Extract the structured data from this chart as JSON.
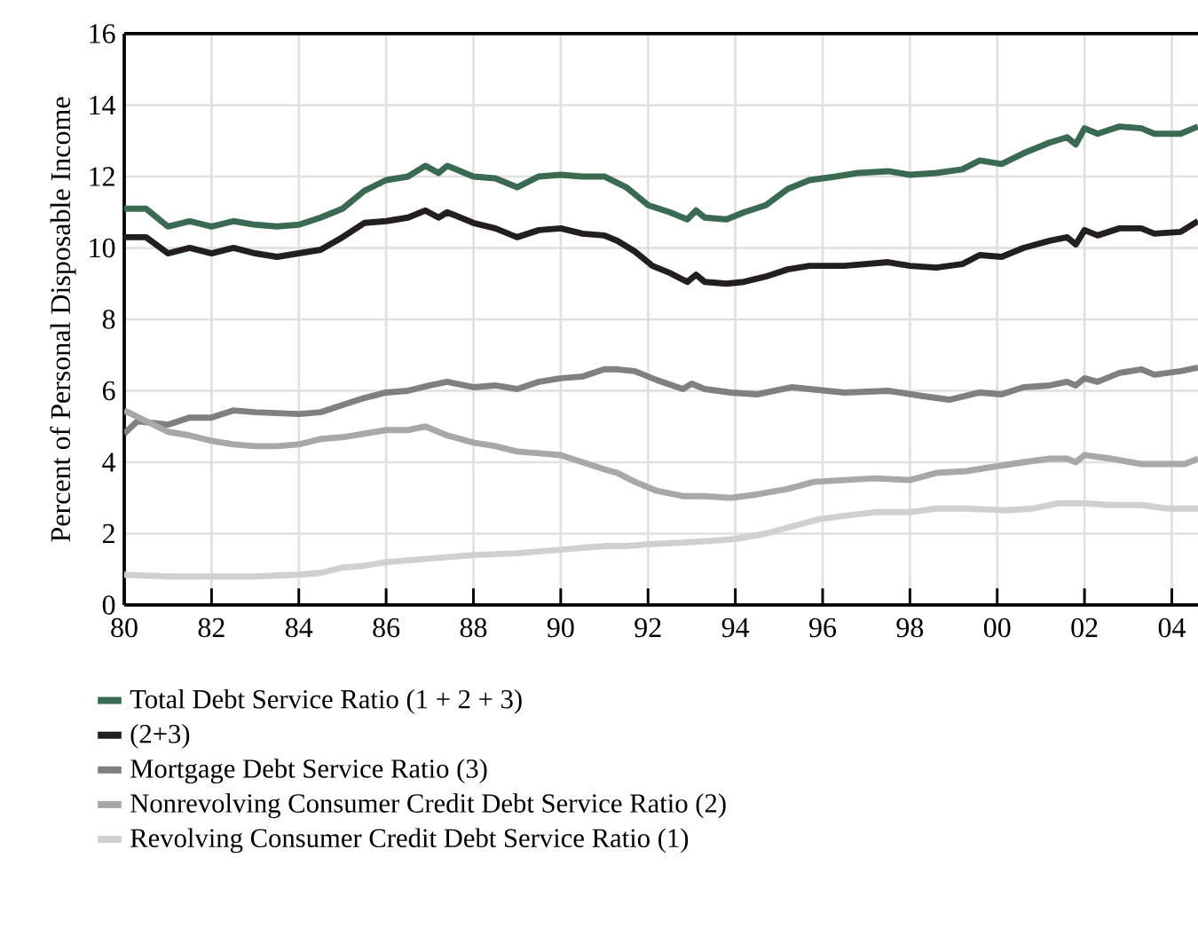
{
  "chart_data": {
    "type": "line",
    "ylabel": "Percent of Personal Disposable Income",
    "xlim": [
      1980,
      2004.6
    ],
    "ylim": [
      0,
      16
    ],
    "xticks": [
      {
        "value": 1980,
        "label": "80"
      },
      {
        "value": 1982,
        "label": "82"
      },
      {
        "value": 1984,
        "label": "84"
      },
      {
        "value": 1986,
        "label": "86"
      },
      {
        "value": 1988,
        "label": "88"
      },
      {
        "value": 1990,
        "label": "90"
      },
      {
        "value": 1992,
        "label": "92"
      },
      {
        "value": 1994,
        "label": "94"
      },
      {
        "value": 1996,
        "label": "96"
      },
      {
        "value": 1998,
        "label": "98"
      },
      {
        "value": 2000,
        "label": "00"
      },
      {
        "value": 2002,
        "label": "02"
      },
      {
        "value": 2004,
        "label": "04"
      }
    ],
    "yticks": [
      0,
      2,
      4,
      6,
      8,
      10,
      12,
      14,
      16
    ],
    "grid": true,
    "legend": "bottom",
    "series": [
      {
        "name": "Total Debt Service Ratio (1 + 2 + 3)",
        "color": "#3a6b52",
        "x": [
          1980,
          1980.5,
          1981,
          1981.5,
          1982,
          1982.5,
          1983,
          1983.5,
          1984,
          1984.5,
          1985,
          1985.5,
          1986,
          1986.5,
          1986.9,
          1987.2,
          1987.4,
          1988,
          1988.5,
          1989,
          1989.5,
          1990,
          1990.5,
          1991,
          1991.5,
          1992,
          1992.5,
          1992.9,
          1993.1,
          1993.3,
          1993.8,
          1994.2,
          1994.7,
          1995.2,
          1995.7,
          1996.3,
          1996.8,
          1997.5,
          1998,
          1998.6,
          1999.2,
          1999.6,
          2000.1,
          2000.6,
          2001.2,
          2001.6,
          2001.8,
          2002.0,
          2002.3,
          2002.8,
          2003.3,
          2003.6,
          2004.2,
          2004.6
        ],
        "values": [
          11.1,
          11.1,
          10.6,
          10.75,
          10.6,
          10.75,
          10.65,
          10.6,
          10.65,
          10.85,
          11.1,
          11.6,
          11.9,
          12.0,
          12.3,
          12.1,
          12.3,
          12.0,
          11.95,
          11.7,
          12.0,
          12.05,
          12.0,
          12.0,
          11.7,
          11.2,
          11.0,
          10.8,
          11.05,
          10.85,
          10.8,
          11.0,
          11.2,
          11.65,
          11.9,
          12.0,
          12.1,
          12.15,
          12.05,
          12.1,
          12.2,
          12.45,
          12.35,
          12.65,
          12.95,
          13.1,
          12.9,
          13.35,
          13.2,
          13.4,
          13.35,
          13.2,
          13.2,
          13.4
        ]
      },
      {
        "name": "(2+3)",
        "color": "#231f20",
        "x": [
          1980,
          1980.5,
          1981,
          1981.5,
          1982,
          1982.5,
          1983,
          1983.5,
          1984,
          1984.5,
          1985,
          1985.5,
          1986,
          1986.5,
          1986.9,
          1987.2,
          1987.4,
          1988,
          1988.5,
          1989,
          1989.5,
          1990,
          1990.5,
          1991,
          1991.3,
          1991.7,
          1992.1,
          1992.5,
          1992.9,
          1993.1,
          1993.3,
          1993.8,
          1994.2,
          1994.7,
          1995.2,
          1995.7,
          1996.5,
          1997.5,
          1998,
          1998.6,
          1999.2,
          1999.6,
          2000.1,
          2000.6,
          2001.2,
          2001.6,
          2001.8,
          2002.0,
          2002.3,
          2002.8,
          2003.3,
          2003.6,
          2004.2,
          2004.6
        ],
        "values": [
          10.3,
          10.3,
          9.85,
          10.0,
          9.85,
          10.0,
          9.85,
          9.75,
          9.85,
          9.95,
          10.3,
          10.7,
          10.75,
          10.85,
          11.05,
          10.85,
          11.0,
          10.7,
          10.55,
          10.3,
          10.5,
          10.55,
          10.4,
          10.35,
          10.2,
          9.9,
          9.5,
          9.3,
          9.05,
          9.25,
          9.05,
          9.0,
          9.05,
          9.2,
          9.4,
          9.5,
          9.5,
          9.6,
          9.5,
          9.45,
          9.55,
          9.8,
          9.75,
          10.0,
          10.2,
          10.3,
          10.1,
          10.5,
          10.35,
          10.55,
          10.55,
          10.4,
          10.45,
          10.75
        ]
      },
      {
        "name": "Mortgage Debt Service Ratio (3)",
        "color": "#808082",
        "x": [
          1980,
          1980.3,
          1981,
          1981.5,
          1982,
          1982.5,
          1983,
          1984,
          1984.5,
          1985,
          1985.5,
          1986,
          1986.5,
          1987,
          1987.4,
          1988,
          1988.5,
          1989,
          1989.5,
          1990,
          1990.5,
          1991,
          1991.3,
          1991.7,
          1992.2,
          1992.8,
          1993.0,
          1993.3,
          1993.9,
          1994.5,
          1995.3,
          1995.7,
          1996.5,
          1997.5,
          1998.3,
          1998.9,
          1999.6,
          2000.1,
          2000.6,
          2001.2,
          2001.6,
          2001.8,
          2002.0,
          2002.3,
          2002.8,
          2003.3,
          2003.6,
          2004.2,
          2004.6
        ],
        "values": [
          4.8,
          5.15,
          5.05,
          5.25,
          5.25,
          5.45,
          5.4,
          5.35,
          5.4,
          5.6,
          5.8,
          5.95,
          6.0,
          6.15,
          6.25,
          6.1,
          6.15,
          6.05,
          6.25,
          6.35,
          6.4,
          6.6,
          6.6,
          6.55,
          6.3,
          6.05,
          6.2,
          6.05,
          5.95,
          5.9,
          6.1,
          6.05,
          5.95,
          6.0,
          5.85,
          5.75,
          5.95,
          5.9,
          6.1,
          6.15,
          6.25,
          6.15,
          6.35,
          6.25,
          6.5,
          6.6,
          6.45,
          6.55,
          6.65
        ]
      },
      {
        "name": "Nonrevolving Consumer Credit Debt Service Ratio (2)",
        "color": "#a8a8aa",
        "x": [
          1980,
          1980.5,
          1981,
          1981.5,
          1982,
          1982.5,
          1983,
          1983.5,
          1984,
          1984.5,
          1985,
          1985.5,
          1986,
          1986.5,
          1986.9,
          1987.4,
          1988,
          1988.5,
          1989,
          1989.5,
          1990,
          1990.5,
          1991,
          1991.3,
          1991.7,
          1992.2,
          1992.8,
          1993.3,
          1993.9,
          1994.5,
          1995.2,
          1995.8,
          1996.5,
          1997.2,
          1998.0,
          1998.6,
          1999.3,
          1999.8,
          2000.6,
          2001.2,
          2001.6,
          2001.8,
          2002.0,
          2002.6,
          2003.3,
          2004.0,
          2004.3,
          2004.6
        ],
        "values": [
          5.45,
          5.15,
          4.85,
          4.75,
          4.6,
          4.5,
          4.45,
          4.45,
          4.5,
          4.65,
          4.7,
          4.8,
          4.9,
          4.9,
          5.0,
          4.75,
          4.55,
          4.45,
          4.3,
          4.25,
          4.2,
          4.0,
          3.8,
          3.7,
          3.45,
          3.2,
          3.05,
          3.05,
          3.0,
          3.1,
          3.25,
          3.45,
          3.5,
          3.55,
          3.5,
          3.7,
          3.75,
          3.85,
          4.0,
          4.1,
          4.1,
          4.0,
          4.2,
          4.1,
          3.95,
          3.95,
          3.95,
          4.1
        ]
      },
      {
        "name": "Revolving Consumer Credit Debt Service Ratio (1)",
        "color": "#d0d0d2",
        "x": [
          1980,
          1981,
          1982,
          1983,
          1984,
          1984.5,
          1985,
          1985.5,
          1986,
          1986.5,
          1987,
          1988,
          1989,
          1990,
          1990.5,
          1991,
          1991.5,
          1992.0,
          1992.8,
          1993.5,
          1994.0,
          1994.7,
          1995.3,
          1995.9,
          1996.5,
          1997.2,
          1998.0,
          1998.6,
          1999.3,
          2000.2,
          2000.8,
          2001.4,
          2002.0,
          2002.6,
          2003.3,
          2003.9,
          2004.6
        ],
        "values": [
          0.85,
          0.8,
          0.8,
          0.8,
          0.85,
          0.9,
          1.05,
          1.1,
          1.2,
          1.25,
          1.3,
          1.4,
          1.45,
          1.55,
          1.6,
          1.65,
          1.65,
          1.7,
          1.75,
          1.8,
          1.85,
          2.0,
          2.2,
          2.4,
          2.5,
          2.6,
          2.6,
          2.7,
          2.7,
          2.65,
          2.7,
          2.85,
          2.85,
          2.8,
          2.8,
          2.7,
          2.7
        ]
      }
    ]
  }
}
